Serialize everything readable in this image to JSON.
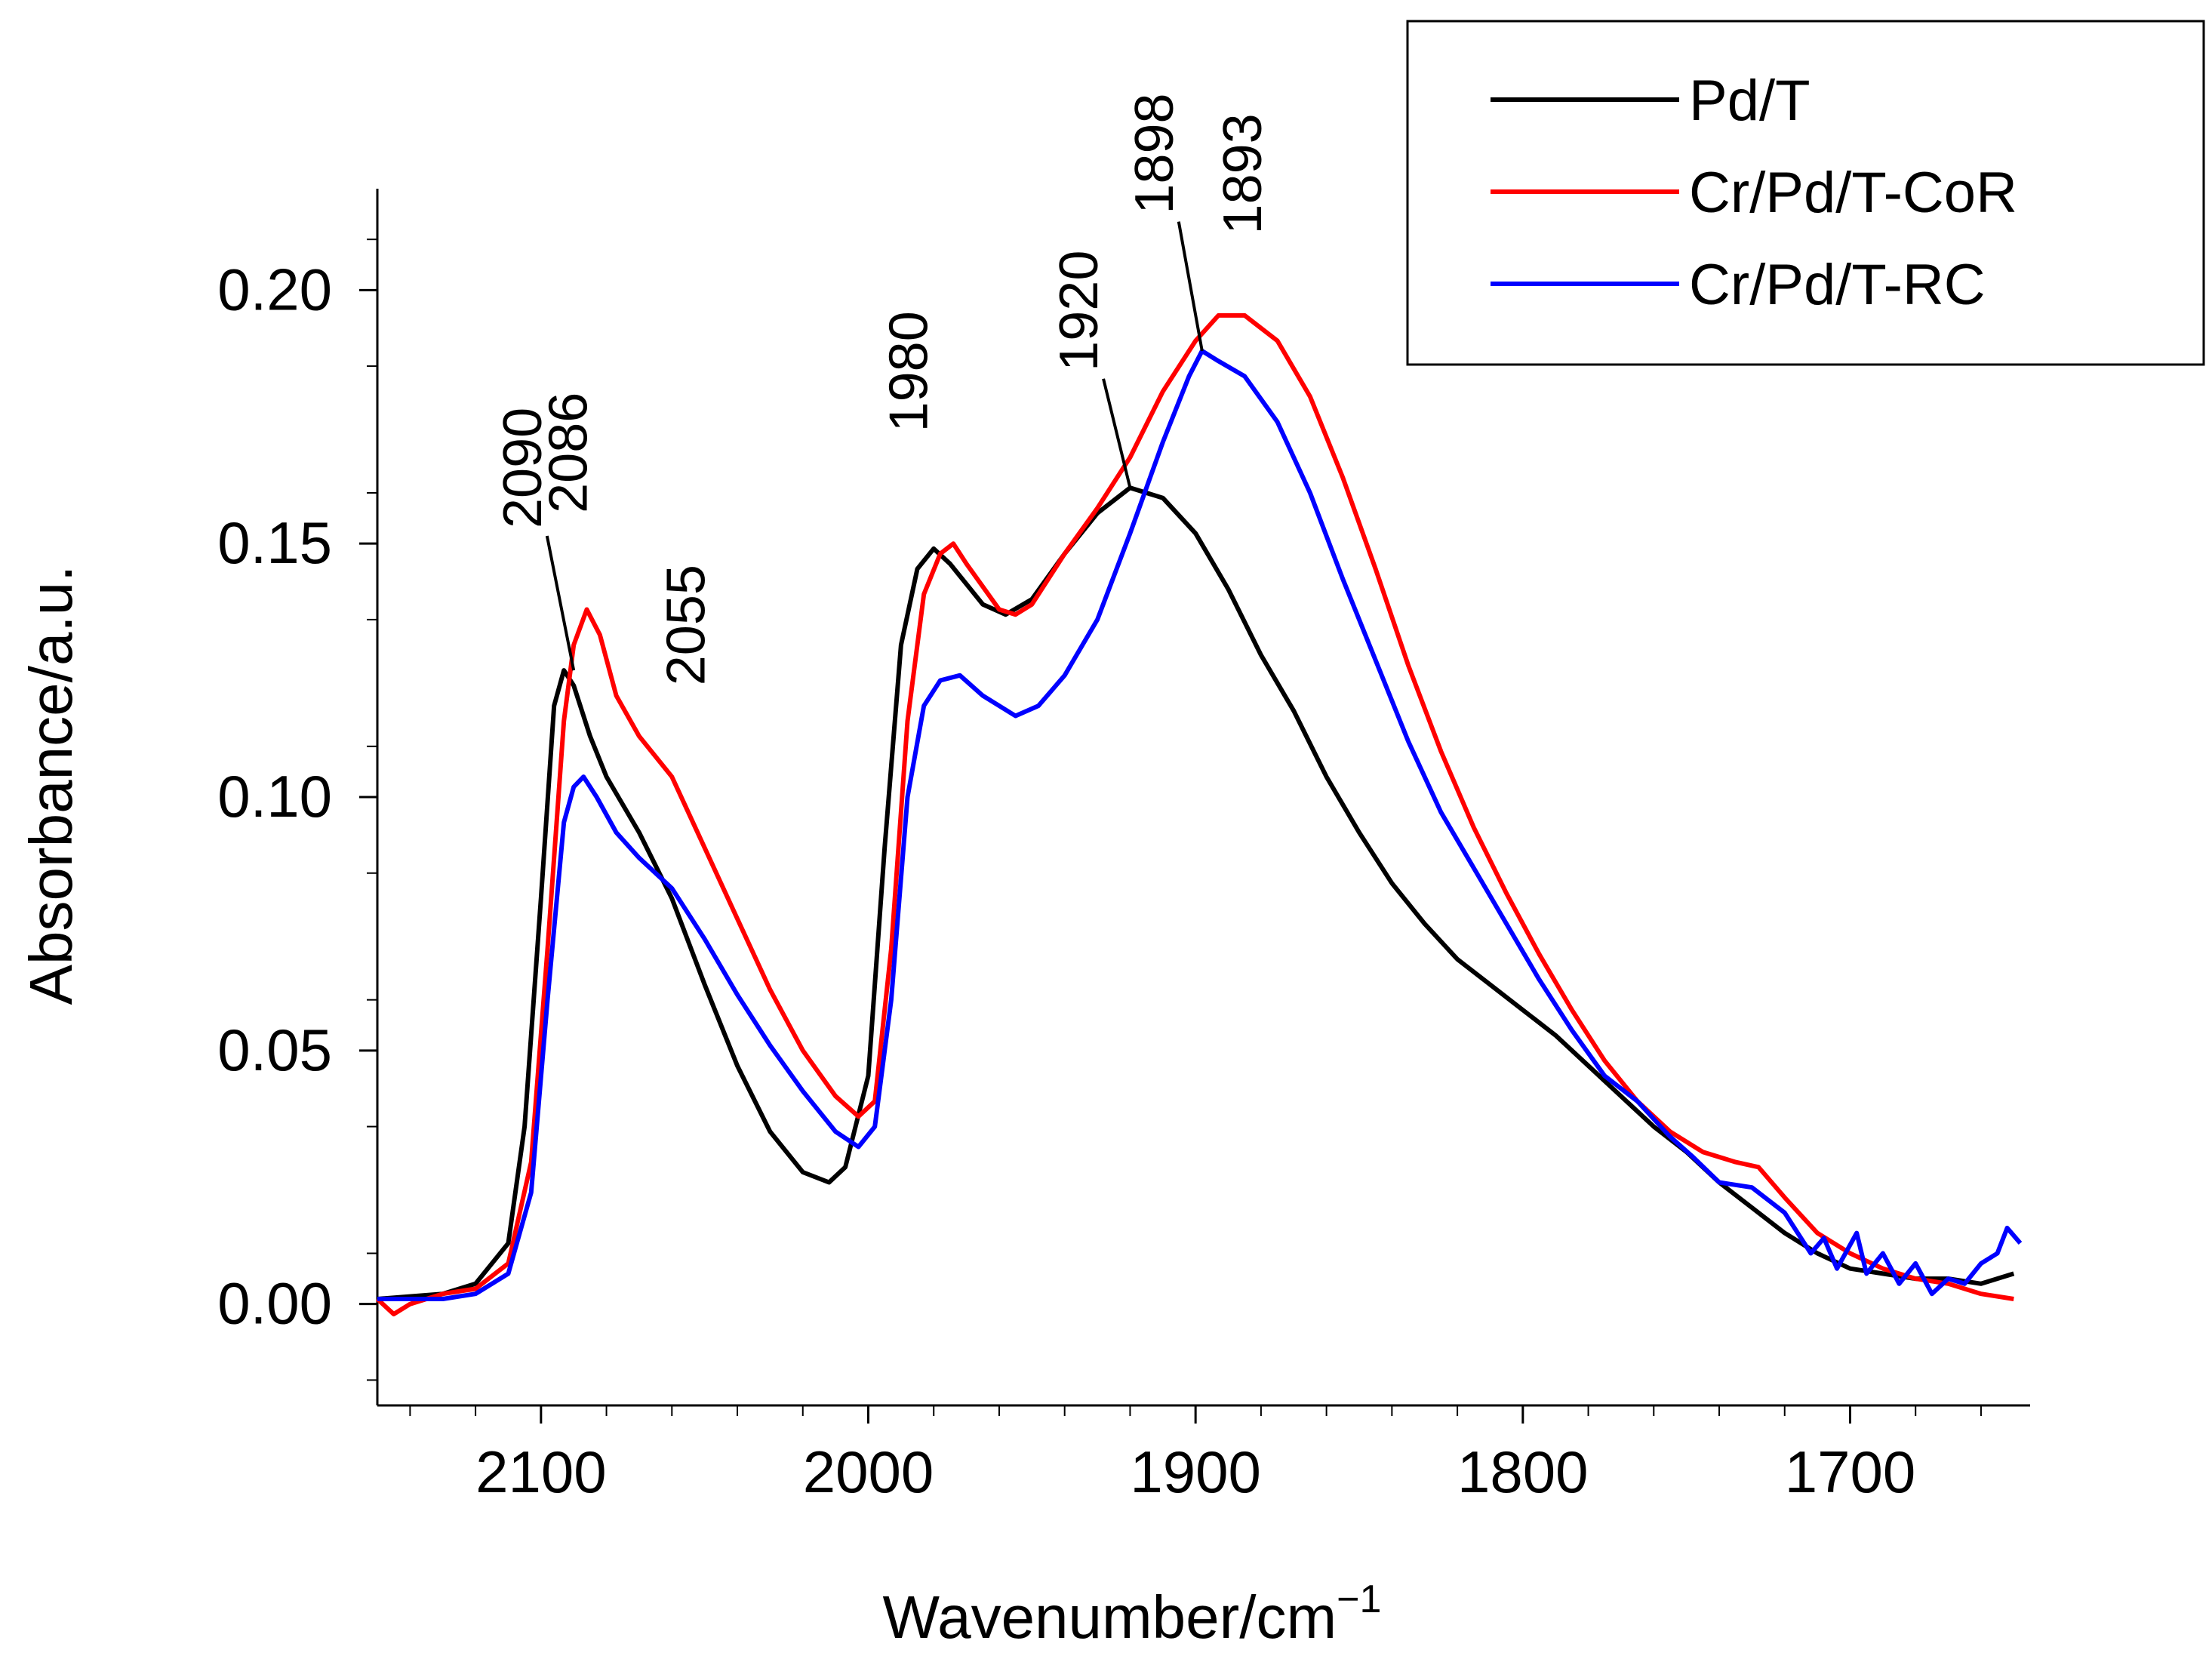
{
  "chart_data": {
    "type": "line",
    "title": "",
    "xlabel": "Wavenumber/cm",
    "xlabel_superscript": "−1",
    "ylabel": "Absorbance/a.u.",
    "xlim": [
      2150,
      1645
    ],
    "ylim": [
      -0.02,
      0.22
    ],
    "x_ticks": [
      2100,
      2000,
      1900,
      1800,
      1700
    ],
    "x_tick_labels": [
      "2100",
      "2000",
      "1900",
      "1800",
      "1700"
    ],
    "y_ticks": [
      0.0,
      0.05,
      0.1,
      0.15,
      0.2
    ],
    "y_tick_labels": [
      "0.00",
      "0.05",
      "0.10",
      "0.15",
      "0.20"
    ],
    "grid": false,
    "legend_position": "top-right",
    "series": [
      {
        "name": "Pd/T",
        "color": "#000000",
        "points": [
          [
            2150,
            0.001
          ],
          [
            2130,
            0.002
          ],
          [
            2120,
            0.004
          ],
          [
            2110,
            0.012
          ],
          [
            2105,
            0.035
          ],
          [
            2100,
            0.08
          ],
          [
            2096,
            0.118
          ],
          [
            2093,
            0.125
          ],
          [
            2090,
            0.122
          ],
          [
            2085,
            0.112
          ],
          [
            2080,
            0.104
          ],
          [
            2070,
            0.093
          ],
          [
            2060,
            0.08
          ],
          [
            2050,
            0.063
          ],
          [
            2040,
            0.047
          ],
          [
            2030,
            0.034
          ],
          [
            2020,
            0.026
          ],
          [
            2012,
            0.024
          ],
          [
            2007,
            0.027
          ],
          [
            2000,
            0.045
          ],
          [
            1995,
            0.09
          ],
          [
            1990,
            0.13
          ],
          [
            1985,
            0.145
          ],
          [
            1980,
            0.149
          ],
          [
            1975,
            0.146
          ],
          [
            1965,
            0.138
          ],
          [
            1958,
            0.136
          ],
          [
            1950,
            0.139
          ],
          [
            1940,
            0.148
          ],
          [
            1930,
            0.156
          ],
          [
            1920,
            0.161
          ],
          [
            1910,
            0.159
          ],
          [
            1900,
            0.152
          ],
          [
            1890,
            0.141
          ],
          [
            1880,
            0.128
          ],
          [
            1870,
            0.117
          ],
          [
            1860,
            0.104
          ],
          [
            1850,
            0.093
          ],
          [
            1840,
            0.083
          ],
          [
            1830,
            0.075
          ],
          [
            1820,
            0.068
          ],
          [
            1810,
            0.063
          ],
          [
            1800,
            0.058
          ],
          [
            1790,
            0.053
          ],
          [
            1780,
            0.047
          ],
          [
            1770,
            0.041
          ],
          [
            1760,
            0.035
          ],
          [
            1750,
            0.03
          ],
          [
            1740,
            0.024
          ],
          [
            1730,
            0.019
          ],
          [
            1720,
            0.014
          ],
          [
            1710,
            0.01
          ],
          [
            1700,
            0.007
          ],
          [
            1690,
            0.006
          ],
          [
            1680,
            0.005
          ],
          [
            1670,
            0.005
          ],
          [
            1660,
            0.004
          ],
          [
            1650,
            0.006
          ]
        ]
      },
      {
        "name": "Cr/Pd/T-CoR",
        "color": "#ff0000",
        "points": [
          [
            2150,
            0.001
          ],
          [
            2145,
            -0.002
          ],
          [
            2140,
            0.0
          ],
          [
            2130,
            0.002
          ],
          [
            2120,
            0.003
          ],
          [
            2110,
            0.008
          ],
          [
            2103,
            0.028
          ],
          [
            2098,
            0.07
          ],
          [
            2093,
            0.115
          ],
          [
            2090,
            0.13
          ],
          [
            2086,
            0.137
          ],
          [
            2082,
            0.132
          ],
          [
            2077,
            0.12
          ],
          [
            2070,
            0.112
          ],
          [
            2060,
            0.104
          ],
          [
            2050,
            0.09
          ],
          [
            2040,
            0.076
          ],
          [
            2030,
            0.062
          ],
          [
            2020,
            0.05
          ],
          [
            2010,
            0.041
          ],
          [
            2003,
            0.037
          ],
          [
            1998,
            0.04
          ],
          [
            1993,
            0.07
          ],
          [
            1988,
            0.115
          ],
          [
            1983,
            0.14
          ],
          [
            1978,
            0.148
          ],
          [
            1974,
            0.15
          ],
          [
            1970,
            0.146
          ],
          [
            1960,
            0.137
          ],
          [
            1955,
            0.136
          ],
          [
            1950,
            0.138
          ],
          [
            1940,
            0.148
          ],
          [
            1930,
            0.157
          ],
          [
            1920,
            0.167
          ],
          [
            1910,
            0.18
          ],
          [
            1900,
            0.19
          ],
          [
            1893,
            0.195
          ],
          [
            1885,
            0.195
          ],
          [
            1875,
            0.19
          ],
          [
            1865,
            0.179
          ],
          [
            1855,
            0.163
          ],
          [
            1845,
            0.145
          ],
          [
            1835,
            0.126
          ],
          [
            1825,
            0.109
          ],
          [
            1815,
            0.094
          ],
          [
            1805,
            0.081
          ],
          [
            1795,
            0.069
          ],
          [
            1785,
            0.058
          ],
          [
            1775,
            0.048
          ],
          [
            1765,
            0.04
          ],
          [
            1755,
            0.034
          ],
          [
            1745,
            0.03
          ],
          [
            1735,
            0.028
          ],
          [
            1728,
            0.027
          ],
          [
            1720,
            0.021
          ],
          [
            1710,
            0.014
          ],
          [
            1700,
            0.01
          ],
          [
            1690,
            0.007
          ],
          [
            1680,
            0.005
          ],
          [
            1670,
            0.004
          ],
          [
            1660,
            0.002
          ],
          [
            1650,
            0.001
          ]
        ]
      },
      {
        "name": "Cr/Pd/T-RC",
        "color": "#0000ff",
        "points": [
          [
            2150,
            0.001
          ],
          [
            2130,
            0.001
          ],
          [
            2120,
            0.002
          ],
          [
            2110,
            0.006
          ],
          [
            2103,
            0.022
          ],
          [
            2098,
            0.06
          ],
          [
            2093,
            0.095
          ],
          [
            2090,
            0.102
          ],
          [
            2087,
            0.104
          ],
          [
            2083,
            0.1
          ],
          [
            2077,
            0.093
          ],
          [
            2070,
            0.088
          ],
          [
            2060,
            0.082
          ],
          [
            2050,
            0.072
          ],
          [
            2040,
            0.061
          ],
          [
            2030,
            0.051
          ],
          [
            2020,
            0.042
          ],
          [
            2010,
            0.034
          ],
          [
            2003,
            0.031
          ],
          [
            1998,
            0.035
          ],
          [
            1993,
            0.06
          ],
          [
            1988,
            0.1
          ],
          [
            1983,
            0.118
          ],
          [
            1978,
            0.123
          ],
          [
            1972,
            0.124
          ],
          [
            1965,
            0.12
          ],
          [
            1955,
            0.116
          ],
          [
            1948,
            0.118
          ],
          [
            1940,
            0.124
          ],
          [
            1930,
            0.135
          ],
          [
            1920,
            0.152
          ],
          [
            1910,
            0.17
          ],
          [
            1902,
            0.183
          ],
          [
            1898,
            0.188
          ],
          [
            1893,
            0.186
          ],
          [
            1885,
            0.183
          ],
          [
            1875,
            0.174
          ],
          [
            1865,
            0.16
          ],
          [
            1855,
            0.143
          ],
          [
            1845,
            0.127
          ],
          [
            1835,
            0.111
          ],
          [
            1825,
            0.097
          ],
          [
            1815,
            0.086
          ],
          [
            1805,
            0.075
          ],
          [
            1795,
            0.064
          ],
          [
            1785,
            0.054
          ],
          [
            1775,
            0.045
          ],
          [
            1765,
            0.04
          ],
          [
            1755,
            0.033
          ],
          [
            1748,
            0.029
          ],
          [
            1740,
            0.024
          ],
          [
            1730,
            0.023
          ],
          [
            1720,
            0.018
          ],
          [
            1712,
            0.01
          ],
          [
            1708,
            0.013
          ],
          [
            1704,
            0.007
          ],
          [
            1698,
            0.014
          ],
          [
            1695,
            0.006
          ],
          [
            1690,
            0.01
          ],
          [
            1685,
            0.004
          ],
          [
            1680,
            0.008
          ],
          [
            1675,
            0.002
          ],
          [
            1670,
            0.005
          ],
          [
            1665,
            0.004
          ],
          [
            1660,
            0.008
          ],
          [
            1655,
            0.01
          ],
          [
            1652,
            0.015
          ],
          [
            1648,
            0.012
          ]
        ]
      }
    ],
    "annotations": [
      {
        "text": "2090",
        "target_x": 2090,
        "target_y": 0.125,
        "x": 2100,
        "y": 0.153,
        "leader": true
      },
      {
        "text": "2086",
        "target_x": 2086,
        "target_y": 0.137,
        "x": 2086,
        "y": 0.156,
        "leader": false
      },
      {
        "text": "2055",
        "target_x": 2055,
        "target_y": 0.105,
        "x": 2050,
        "y": 0.122,
        "leader": false
      },
      {
        "text": "1980",
        "target_x": 1980,
        "target_y": 0.149,
        "x": 1982,
        "y": 0.172,
        "leader": false
      },
      {
        "text": "1920",
        "target_x": 1920,
        "target_y": 0.161,
        "x": 1930,
        "y": 0.184,
        "leader": true
      },
      {
        "text": "1898",
        "target_x": 1898,
        "target_y": 0.188,
        "x": 1907,
        "y": 0.215,
        "leader": true
      },
      {
        "text": "1893",
        "target_x": 1893,
        "target_y": 0.195,
        "x": 1880,
        "y": 0.211,
        "leader": false
      }
    ]
  }
}
